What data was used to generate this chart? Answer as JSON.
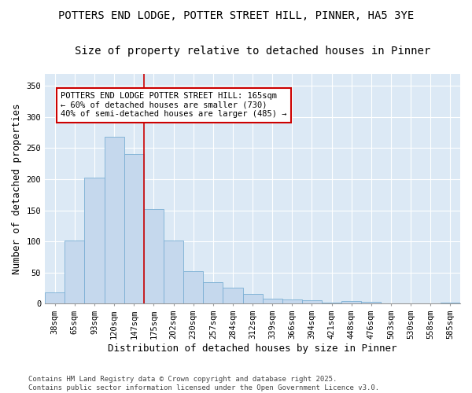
{
  "title1": "POTTERS END LODGE, POTTER STREET HILL, PINNER, HA5 3YE",
  "title2": "Size of property relative to detached houses in Pinner",
  "xlabel": "Distribution of detached houses by size in Pinner",
  "ylabel": "Number of detached properties",
  "categories": [
    "38sqm",
    "65sqm",
    "93sqm",
    "120sqm",
    "147sqm",
    "175sqm",
    "202sqm",
    "230sqm",
    "257sqm",
    "284sqm",
    "312sqm",
    "339sqm",
    "366sqm",
    "394sqm",
    "421sqm",
    "448sqm",
    "476sqm",
    "503sqm",
    "530sqm",
    "558sqm",
    "585sqm"
  ],
  "values": [
    18,
    102,
    203,
    268,
    241,
    152,
    101,
    52,
    35,
    26,
    15,
    8,
    7,
    5,
    2,
    4,
    3,
    1,
    1,
    1,
    2
  ],
  "bar_color": "#c5d8ed",
  "bar_edge_color": "#7bafd4",
  "bar_edge_width": 0.6,
  "vline_x_index": 5,
  "vline_color": "#cc0000",
  "annotation_text": "POTTERS END LODGE POTTER STREET HILL: 165sqm\n← 60% of detached houses are smaller (730)\n40% of semi-detached houses are larger (485) →",
  "ylim": [
    0,
    370
  ],
  "yticks": [
    0,
    50,
    100,
    150,
    200,
    250,
    300,
    350
  ],
  "fig_bg_color": "#ffffff",
  "plot_bg_color": "#dce9f5",
  "grid_color": "#ffffff",
  "footer": "Contains HM Land Registry data © Crown copyright and database right 2025.\nContains public sector information licensed under the Open Government Licence v3.0.",
  "title_fontsize": 10,
  "subtitle_fontsize": 10,
  "axis_label_fontsize": 9,
  "tick_fontsize": 7.5,
  "annotation_fontsize": 7.5,
  "footer_fontsize": 6.5
}
